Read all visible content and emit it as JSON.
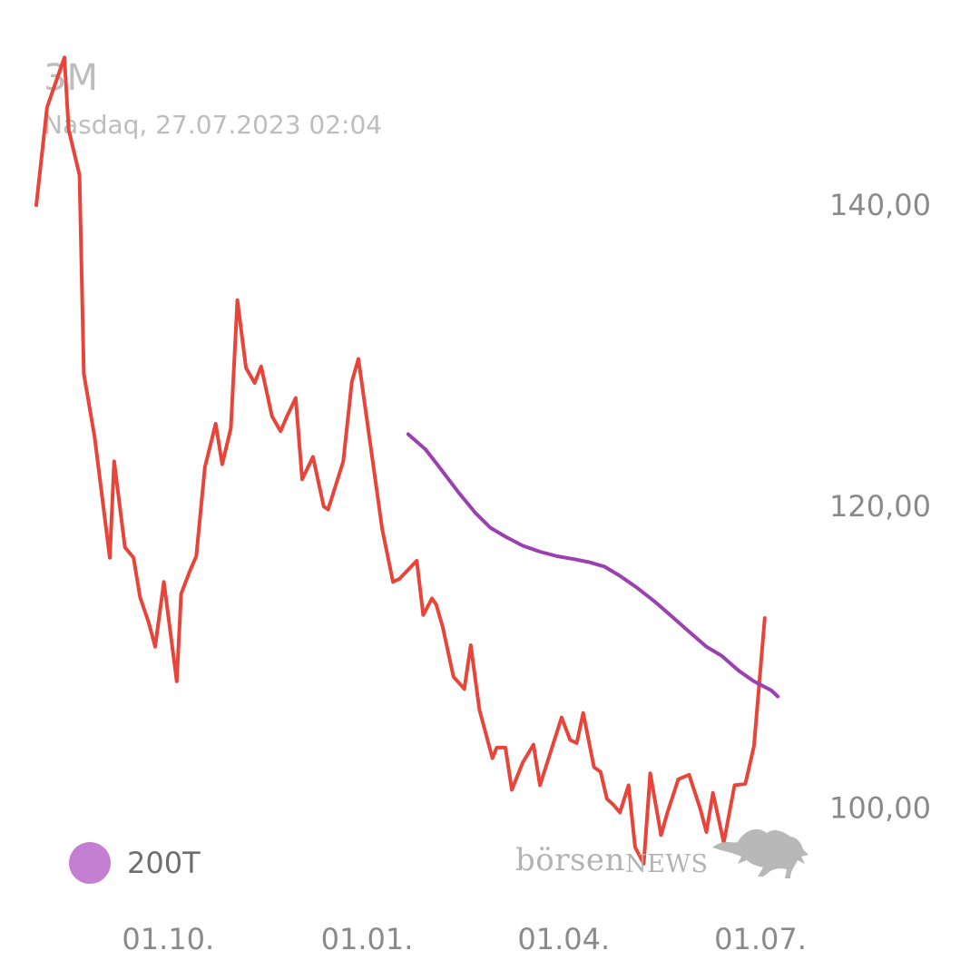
{
  "header": {
    "title": "3M",
    "subtitle": "Nasdaq, 27.07.2023 02:04"
  },
  "legend": {
    "label": "200T",
    "color": "#c57fd2"
  },
  "logo": {
    "text_main": "börsen",
    "text_news": "NEWS",
    "icon": "bull-icon"
  },
  "chart_data": {
    "type": "line",
    "ylim": [
      94,
      150
    ],
    "xlim": [
      "2023-08-01",
      "2024-07-27"
    ],
    "yticks": [
      {
        "value": 140,
        "label": "140,00"
      },
      {
        "value": 120,
        "label": "120,00"
      },
      {
        "value": 100,
        "label": "100,00"
      }
    ],
    "xticks": [
      {
        "date": "2023-10-01",
        "label": "01.10."
      },
      {
        "date": "2024-01-01",
        "label": "01.01."
      },
      {
        "date": "2024-04-01",
        "label": "01.04."
      },
      {
        "date": "2024-07-01",
        "label": "01.07."
      }
    ],
    "grid": false,
    "series": [
      {
        "color": "#e8443a",
        "points": [
          [
            "2023-08-01",
            140.0
          ],
          [
            "2023-08-06",
            146.5
          ],
          [
            "2023-08-14",
            149.8
          ],
          [
            "2023-08-16",
            145.0
          ],
          [
            "2023-08-21",
            142.0
          ],
          [
            "2023-08-23",
            128.8
          ],
          [
            "2023-08-28",
            124.6
          ],
          [
            "2023-09-04",
            116.6
          ],
          [
            "2023-09-06",
            123.0
          ],
          [
            "2023-09-11",
            117.3
          ],
          [
            "2023-09-15",
            116.6
          ],
          [
            "2023-09-18",
            114.0
          ],
          [
            "2023-09-22",
            112.3
          ],
          [
            "2023-09-25",
            110.7
          ],
          [
            "2023-09-29",
            115.0
          ],
          [
            "2023-10-05",
            108.4
          ],
          [
            "2023-10-07",
            114.2
          ],
          [
            "2023-10-11",
            115.7
          ],
          [
            "2023-10-14",
            116.7
          ],
          [
            "2023-10-18",
            122.6
          ],
          [
            "2023-10-23",
            125.5
          ],
          [
            "2023-10-26",
            122.8
          ],
          [
            "2023-10-30",
            125.2
          ],
          [
            "2023-11-02",
            133.7
          ],
          [
            "2023-11-06",
            129.2
          ],
          [
            "2023-11-10",
            128.2
          ],
          [
            "2023-11-13",
            129.3
          ],
          [
            "2023-11-18",
            126.0
          ],
          [
            "2023-11-22",
            125.0
          ],
          [
            "2023-11-25",
            126.0
          ],
          [
            "2023-11-29",
            127.2
          ],
          [
            "2023-12-02",
            121.8
          ],
          [
            "2023-12-07",
            123.3
          ],
          [
            "2023-12-12",
            120.0
          ],
          [
            "2023-12-14",
            119.8
          ],
          [
            "2023-12-21",
            123.0
          ],
          [
            "2023-12-25",
            128.3
          ],
          [
            "2023-12-28",
            129.8
          ],
          [
            "2024-01-08",
            118.5
          ],
          [
            "2024-01-13",
            115.0
          ],
          [
            "2024-01-16",
            115.2
          ],
          [
            "2024-01-24",
            116.4
          ],
          [
            "2024-01-27",
            112.8
          ],
          [
            "2024-01-31",
            113.9
          ],
          [
            "2024-02-02",
            113.5
          ],
          [
            "2024-02-05",
            112.0
          ],
          [
            "2024-02-10",
            108.7
          ],
          [
            "2024-02-15",
            107.9
          ],
          [
            "2024-02-18",
            110.8
          ],
          [
            "2024-02-22",
            106.5
          ],
          [
            "2024-02-28",
            103.3
          ],
          [
            "2024-03-01",
            104.0
          ],
          [
            "2024-03-05",
            104.0
          ],
          [
            "2024-03-08",
            101.2
          ],
          [
            "2024-03-13",
            103.0
          ],
          [
            "2024-03-18",
            104.2
          ],
          [
            "2024-03-21",
            101.5
          ],
          [
            "2024-03-31",
            106.0
          ],
          [
            "2024-04-04",
            104.5
          ],
          [
            "2024-04-07",
            104.3
          ],
          [
            "2024-04-10",
            106.3
          ],
          [
            "2024-04-15",
            102.7
          ],
          [
            "2024-04-18",
            102.4
          ],
          [
            "2024-04-21",
            100.6
          ],
          [
            "2024-04-24",
            100.2
          ],
          [
            "2024-04-27",
            99.7
          ],
          [
            "2024-05-01",
            101.5
          ],
          [
            "2024-05-04",
            97.4
          ],
          [
            "2024-05-08",
            96.3
          ],
          [
            "2024-05-11",
            102.3
          ],
          [
            "2024-05-16",
            98.2
          ],
          [
            "2024-05-19",
            99.7
          ],
          [
            "2024-05-24",
            101.9
          ],
          [
            "2024-05-29",
            102.2
          ],
          [
            "2024-06-03",
            100.0
          ],
          [
            "2024-06-06",
            98.4
          ],
          [
            "2024-06-09",
            101.0
          ],
          [
            "2024-06-14",
            97.7
          ],
          [
            "2024-06-19",
            101.5
          ],
          [
            "2024-06-24",
            101.6
          ],
          [
            "2024-06-28",
            104.1
          ],
          [
            "2024-07-03",
            112.6
          ]
        ]
      },
      {
        "name": "200T",
        "color": "#9c3fb0",
        "points": [
          [
            "2024-01-20",
            124.8
          ],
          [
            "2024-01-28",
            123.8
          ],
          [
            "2024-02-03",
            122.7
          ],
          [
            "2024-02-12",
            121.0
          ],
          [
            "2024-02-20",
            119.6
          ],
          [
            "2024-02-27",
            118.6
          ],
          [
            "2024-03-05",
            118.0
          ],
          [
            "2024-03-13",
            117.4
          ],
          [
            "2024-03-21",
            117.0
          ],
          [
            "2024-03-29",
            116.7
          ],
          [
            "2024-04-06",
            116.5
          ],
          [
            "2024-04-13",
            116.3
          ],
          [
            "2024-04-20",
            116.0
          ],
          [
            "2024-04-27",
            115.4
          ],
          [
            "2024-05-05",
            114.6
          ],
          [
            "2024-05-13",
            113.7
          ],
          [
            "2024-05-21",
            112.7
          ],
          [
            "2024-05-29",
            111.7
          ],
          [
            "2024-06-06",
            110.7
          ],
          [
            "2024-06-13",
            110.1
          ],
          [
            "2024-06-21",
            109.1
          ],
          [
            "2024-06-28",
            108.4
          ],
          [
            "2024-07-06",
            107.8
          ],
          [
            "2024-07-09",
            107.4
          ]
        ]
      }
    ]
  }
}
